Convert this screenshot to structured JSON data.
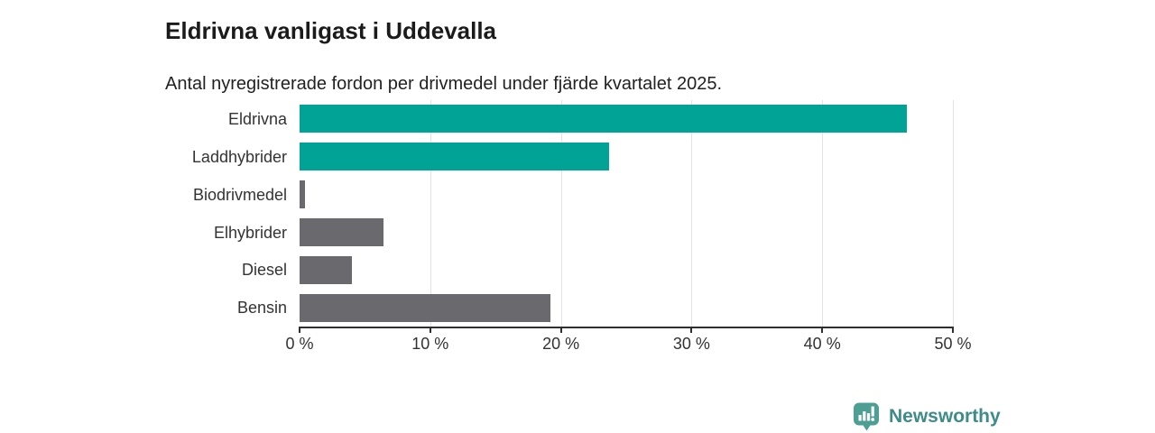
{
  "chart_data": {
    "type": "bar",
    "orientation": "horizontal",
    "title": "Eldrivna vanligast i Uddevalla",
    "subtitle": "Antal nyregistrerade fordon per drivmedel under fjärde kvartalet 2025.",
    "categories": [
      "Eldrivna",
      "Laddhybrider",
      "Biodrivmedel",
      "Elhybrider",
      "Diesel",
      "Bensin"
    ],
    "values": [
      46.5,
      23.7,
      0.4,
      6.4,
      4.0,
      19.2
    ],
    "bar_colors": [
      "#00a396",
      "#00a396",
      "#6a6a6e",
      "#6a6a6e",
      "#6a6a6e",
      "#6a6a6e"
    ],
    "xlim": [
      0,
      50
    ],
    "x_ticks": [
      0,
      10,
      20,
      30,
      40,
      50
    ],
    "x_tick_labels": [
      "0 %",
      "10 %",
      "20 %",
      "30 %",
      "40 %",
      "50 %"
    ],
    "grid": "vertical-gridlines-on",
    "legend": "none",
    "xlabel": "",
    "ylabel": ""
  },
  "colors": {
    "accent_teal": "#00a396",
    "bar_gray": "#6a6a6e",
    "axis_line": "#2f2f2f",
    "gridline": "#e3e3e3",
    "title_text": "#1b1b1b",
    "label_text": "#333333",
    "logo_teal": "#4d9f94",
    "logo_text_teal": "#3e8b88"
  },
  "footer": {
    "brand": "Newsworthy"
  }
}
